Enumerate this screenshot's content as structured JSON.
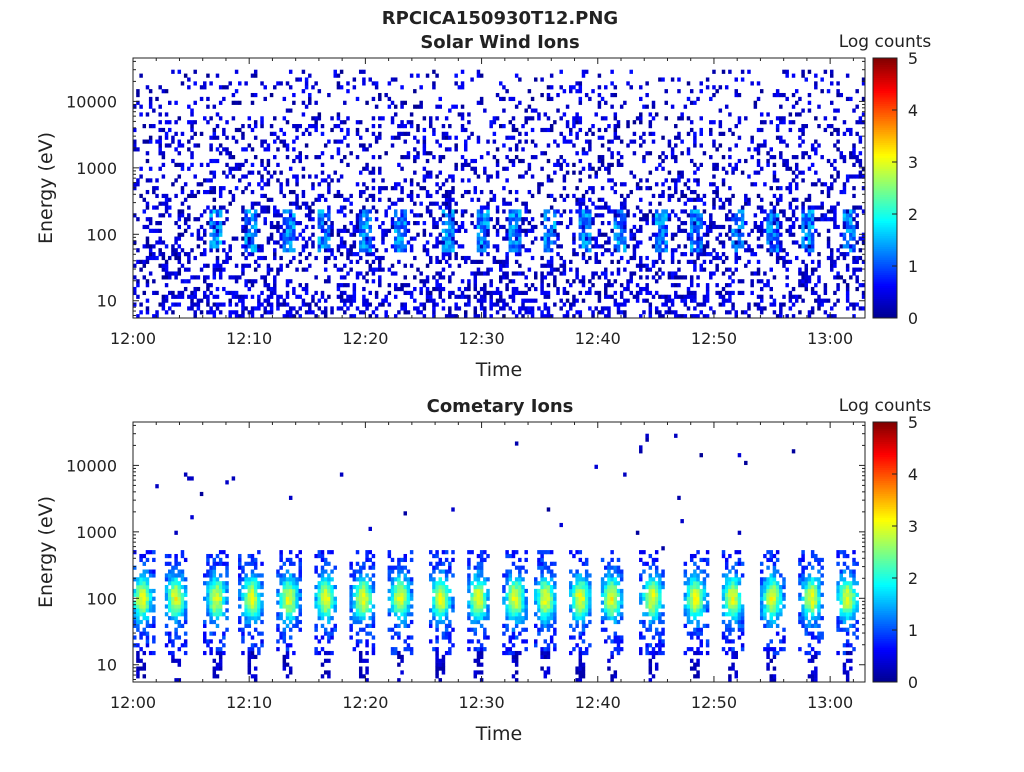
{
  "figure_title": "RPCICA150930T12.PNG",
  "colors": {
    "colormap": [
      "#00008f",
      "#0000ff",
      "#0080ff",
      "#00ffff",
      "#80ff80",
      "#ffff00",
      "#ff8000",
      "#ff0000",
      "#800000"
    ],
    "axis": "#222222",
    "background": "#ffffff"
  },
  "chart_data": [
    {
      "type": "heatmap",
      "title": "Solar Wind Ions",
      "xlabel": "Time",
      "ylabel": "Energy (eV)",
      "x_ticks": [
        "12:00",
        "12:10",
        "12:20",
        "12:30",
        "12:40",
        "12:50",
        "13:00"
      ],
      "x_range_minutes": [
        0,
        63
      ],
      "y_scale": "log",
      "y_ticks": [
        10,
        100,
        1000,
        10000
      ],
      "y_tick_labels": [
        "10",
        "100",
        "1000",
        "10000"
      ],
      "y_range_eV": [
        5.5,
        45000
      ],
      "colorbar_label": "Log counts",
      "colorbar_ticks": [
        "0",
        "1",
        "2",
        "3",
        "4",
        "5"
      ],
      "colorbar_range": [
        0,
        5
      ],
      "pattern": "sparse low counts (log 0-1) across all energies; enhanced bursts (log ~1-1.7) near 100-200 eV",
      "burst_times_minutes": [
        7,
        10,
        13.5,
        16.5,
        20,
        23,
        27,
        30,
        33,
        36,
        39,
        42,
        45.5,
        48.5,
        52,
        55,
        58,
        61.5
      ]
    },
    {
      "type": "heatmap",
      "title": "Cometary Ions",
      "xlabel": "Time",
      "ylabel": "Energy (eV)",
      "x_ticks": [
        "12:00",
        "12:10",
        "12:20",
        "12:30",
        "12:40",
        "12:50",
        "13:00"
      ],
      "x_range_minutes": [
        0,
        63
      ],
      "y_scale": "log",
      "y_ticks": [
        10,
        100,
        1000,
        10000
      ],
      "y_tick_labels": [
        "10",
        "100",
        "1000",
        "10000"
      ],
      "y_range_eV": [
        5.5,
        45000
      ],
      "colorbar_label": "Log counts",
      "colorbar_ticks": [
        "0",
        "1",
        "2",
        "3",
        "4",
        "5"
      ],
      "colorbar_range": [
        0,
        5
      ],
      "pattern": "periodic vertical bands centred near 100 eV (log counts peaking ~2.3-2.8), spanning ~15-500 eV, with sparse isolated counts at higher energies",
      "burst_times_minutes": [
        0.8,
        3.7,
        7.2,
        10.2,
        13.4,
        16.6,
        19.8,
        23.0,
        26.5,
        29.7,
        32.9,
        35.5,
        38.5,
        41.2,
        44.7,
        48.4,
        51.6,
        55.0,
        58.4,
        61.5
      ]
    }
  ]
}
